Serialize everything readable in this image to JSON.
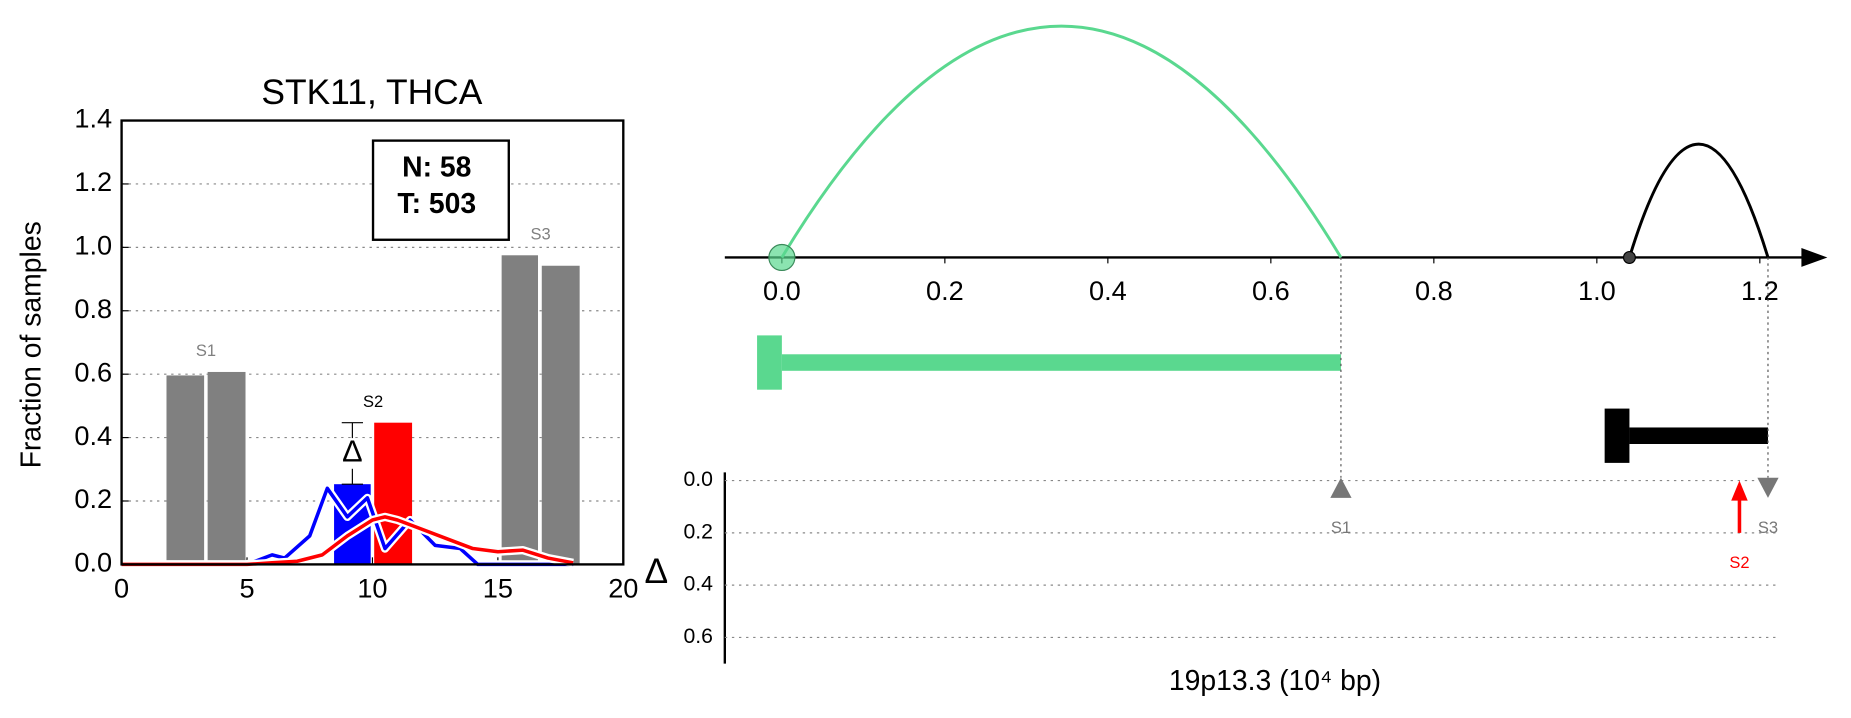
{
  "chart_data": [
    {
      "type": "bar",
      "title": "STK11, THCA",
      "ylabel": "Fraction of samples",
      "xlim": [
        0,
        20
      ],
      "xticks": [
        0,
        5,
        10,
        15,
        20
      ],
      "ylim": [
        0,
        1.4
      ],
      "yticks": [
        {
          "value": 0,
          "label": "0.0"
        },
        0.2,
        0.4,
        0.6,
        0.8,
        {
          "value": 1,
          "label": "1.0"
        },
        1.2,
        1.4
      ],
      "grid": true,
      "annotation": [
        "N: 58",
        "T: 503"
      ],
      "bar_groups": [
        {
          "label": "S1",
          "label_color": "#808080",
          "x0": [
            1.79,
            3.43
          ],
          "x1": [
            3.29,
            4.94
          ],
          "values": [
            0.596,
            0.607
          ],
          "colors": [
            "#808080",
            "#808080"
          ]
        },
        {
          "label": "S2",
          "label_color": "#000000",
          "x0": [
            8.47,
            10.07
          ],
          "x1": [
            9.93,
            11.58
          ],
          "values": [
            0.253,
            0.447
          ],
          "colors": [
            "#0000ff",
            "#ff0000"
          ]
        },
        {
          "label": "S3",
          "label_color": "#808080",
          "x0": [
            15.15,
            16.75
          ],
          "x1": [
            16.6,
            18.26
          ],
          "values": [
            0.975,
            0.942
          ],
          "colors": [
            "#808080",
            "#808080"
          ]
        }
      ],
      "delta_label": "Δ",
      "lines": [
        {
          "color": "#0000ff",
          "x": [
            0,
            5,
            6,
            6.5,
            7.5,
            8.2,
            9,
            9.8,
            10.5,
            11.5,
            12.5,
            13.5,
            14.2,
            18
          ],
          "values": [
            0,
            0,
            0.03,
            0.02,
            0.09,
            0.24,
            0.15,
            0.21,
            0.05,
            0.14,
            0.06,
            0.05,
            0,
            0
          ]
        },
        {
          "color": "#ff0000",
          "x": [
            0,
            5,
            6,
            7,
            8,
            9,
            10,
            10.5,
            11,
            12,
            13,
            14,
            15,
            16,
            17,
            18
          ],
          "values": [
            0,
            0,
            0.005,
            0.01,
            0.03,
            0.09,
            0.14,
            0.15,
            0.14,
            0.11,
            0.08,
            0.05,
            0.04,
            0.045,
            0.02,
            0.005
          ]
        }
      ]
    },
    {
      "type": "genome",
      "xlabel": "19p13.3 (10⁴ bp)",
      "xlim": [
        -0.07,
        1.28
      ],
      "xticks": [
        {
          "value": 0,
          "label": "0.0"
        },
        0.2,
        0.4,
        0.6,
        0.8,
        {
          "value": 1,
          "label": "1.0"
        },
        1.2
      ],
      "arcs": [
        {
          "start": 0,
          "end": 0.686,
          "color": "#5ad88f"
        },
        {
          "start": 1.04,
          "end": 1.21,
          "color": "#000000"
        }
      ],
      "transcripts": [
        {
          "start": 0,
          "end": 0.686,
          "color": "#5ad88f"
        },
        {
          "start": 1.04,
          "end": 1.21,
          "color": "#000000"
        }
      ],
      "ylabel": "Δ",
      "ylim": [
        0,
        0.7
      ],
      "yticks": [
        {
          "value": 0,
          "label": "0.0"
        },
        0.2,
        0.4,
        0.6
      ],
      "sites": [
        {
          "label": "S1",
          "x": 0.686,
          "delta": 0.03,
          "marker": "up",
          "color": "#777777"
        },
        {
          "label": "S2",
          "x": 1.175,
          "delta": 0.2,
          "marker": "arrow",
          "color": "#ff0000"
        },
        {
          "label": "S3",
          "x": 1.21,
          "delta": 0.03,
          "marker": "down",
          "color": "#777777"
        }
      ]
    }
  ]
}
